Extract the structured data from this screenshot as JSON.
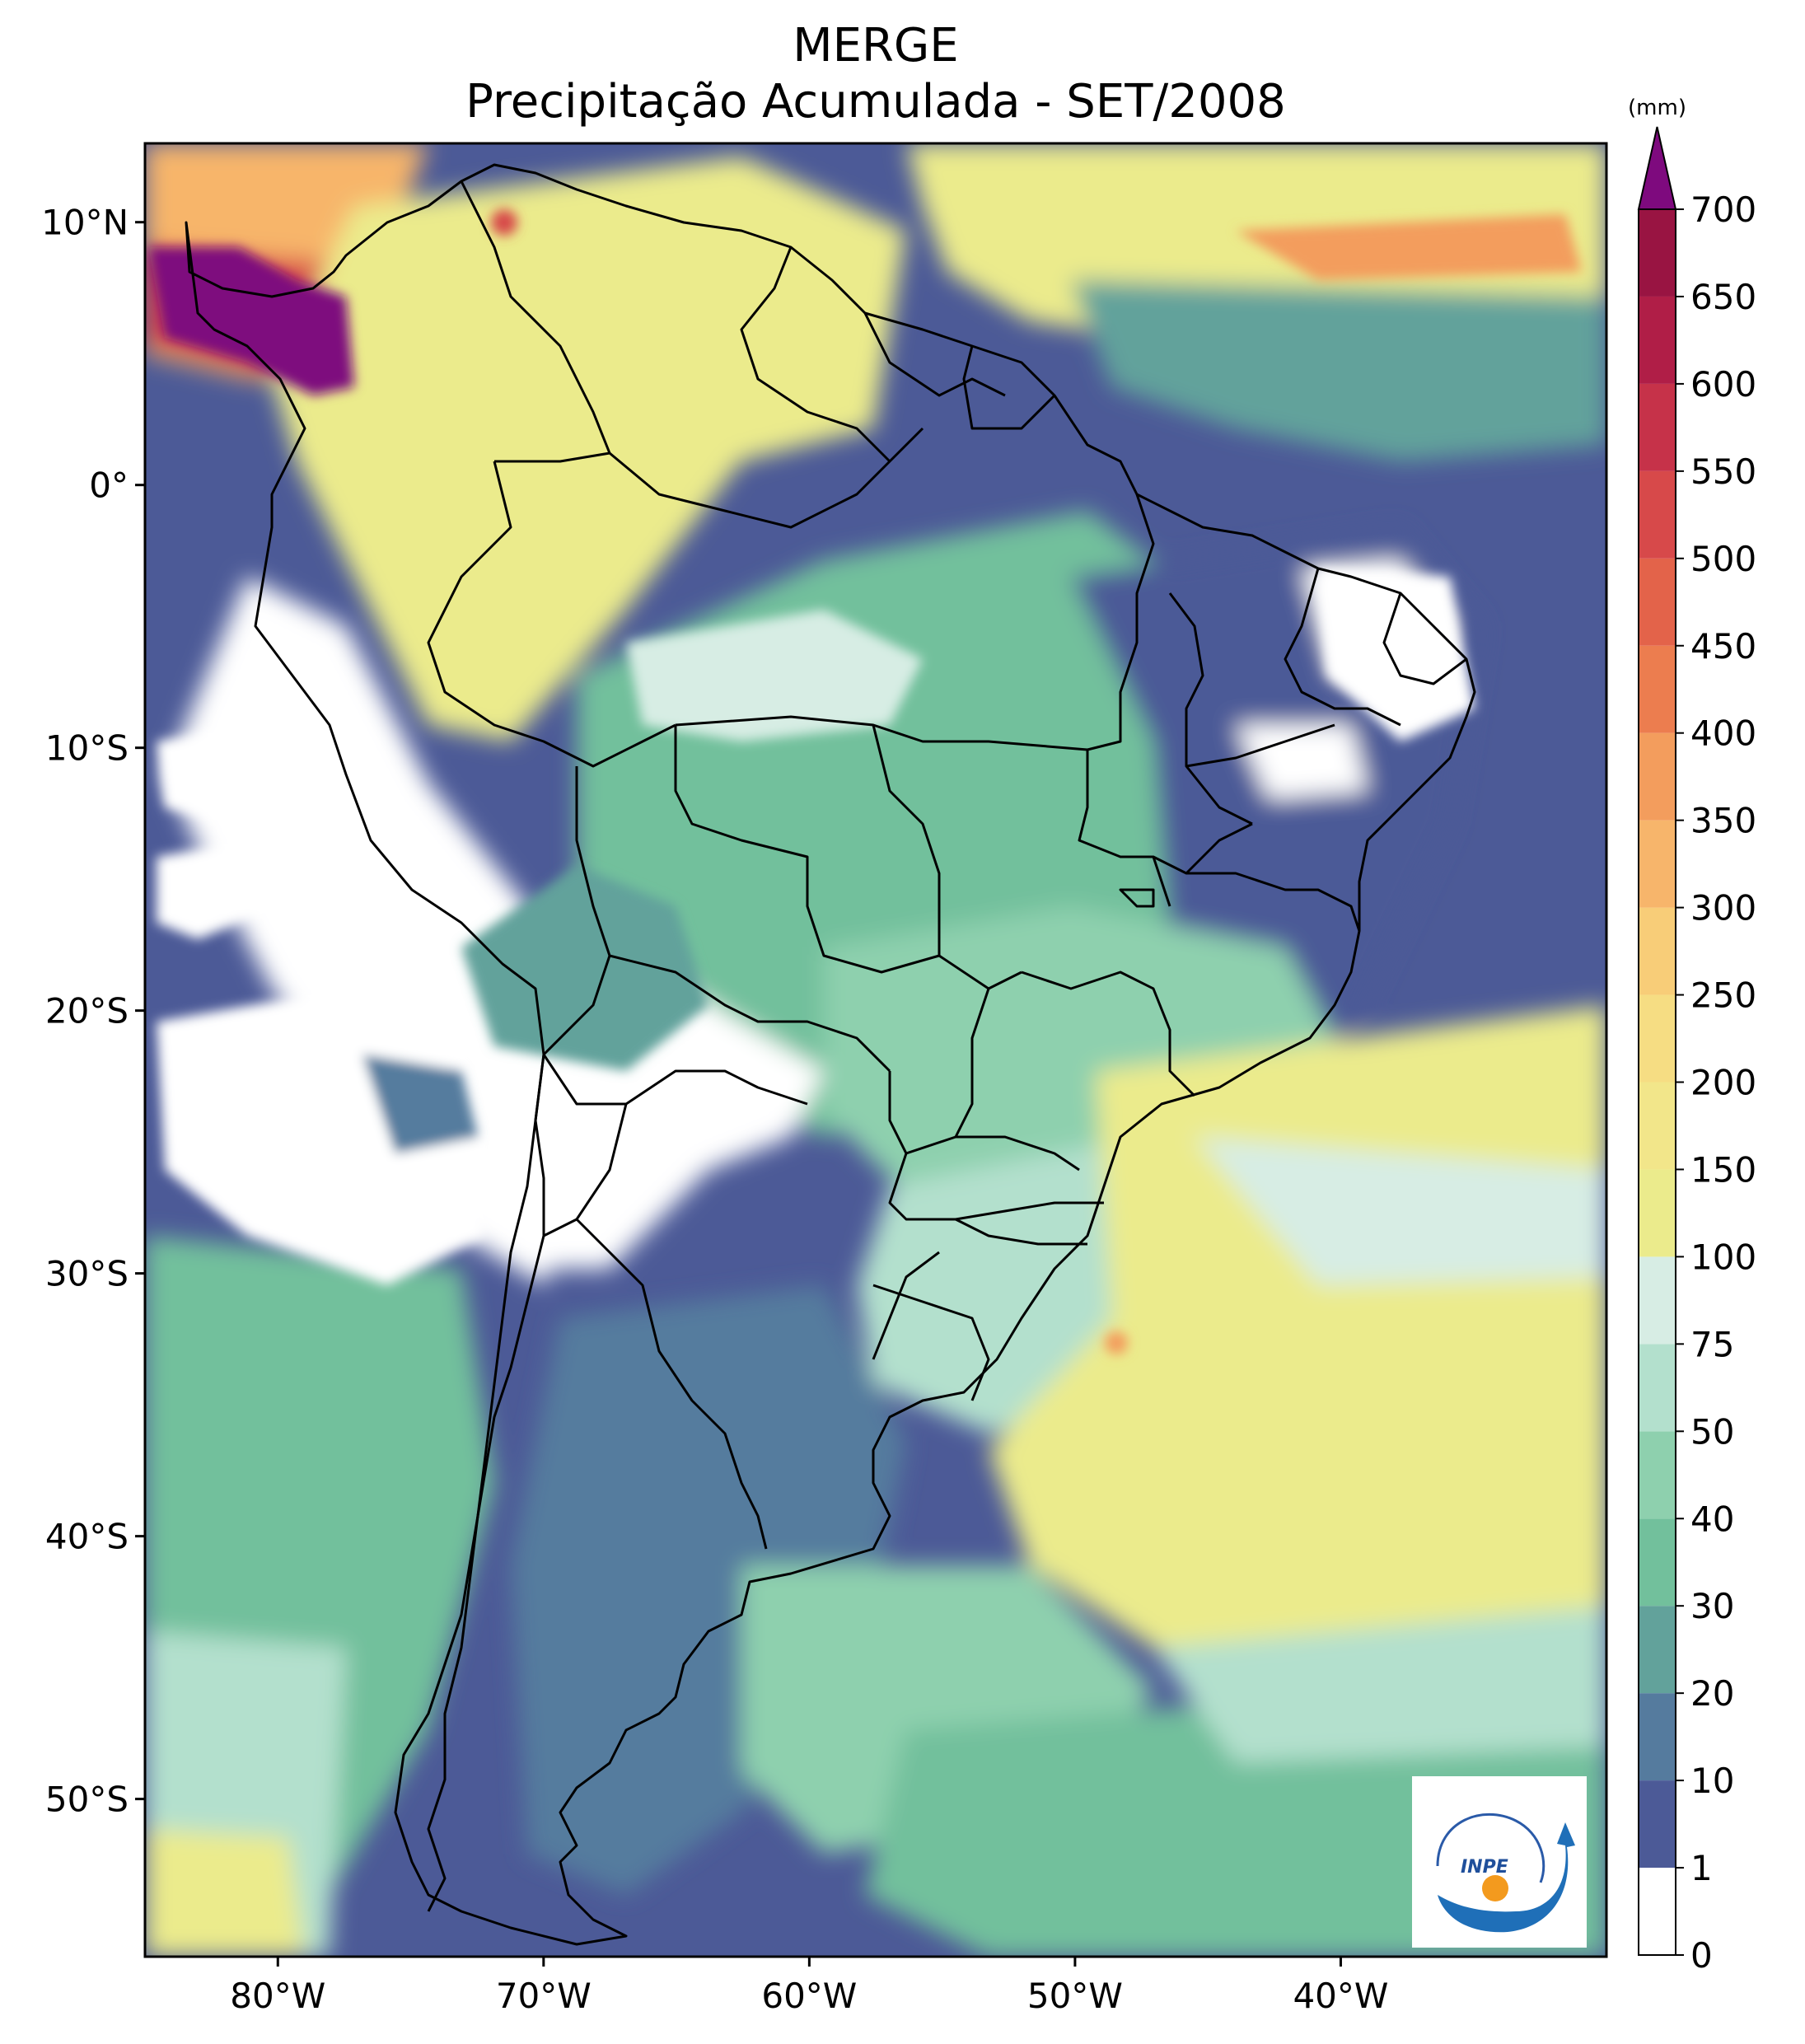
{
  "title": "MERGE",
  "subtitle": "Precipitação Acumulada - SET/2008",
  "map": {
    "region": "South America",
    "lon_range": [
      -85,
      -30
    ],
    "lat_range": [
      -56,
      13
    ],
    "lon_ticks": [
      {
        "value": -80,
        "label": "80°W"
      },
      {
        "value": -70,
        "label": "70°W"
      },
      {
        "value": -60,
        "label": "60°W"
      },
      {
        "value": -50,
        "label": "50°W"
      },
      {
        "value": -40,
        "label": "40°W"
      }
    ],
    "lat_ticks": [
      {
        "value": 10,
        "label": "10°N"
      },
      {
        "value": 0,
        "label": "0°"
      },
      {
        "value": -10,
        "label": "10°S"
      },
      {
        "value": -20,
        "label": "20°S"
      },
      {
        "value": -30,
        "label": "30°S"
      },
      {
        "value": -40,
        "label": "40°S"
      },
      {
        "value": -50,
        "label": "50°S"
      }
    ]
  },
  "colorbar": {
    "unit": "(mm)",
    "extend": "max",
    "levels": [
      {
        "label": "0",
        "color": "#ffffff"
      },
      {
        "label": "1",
        "color": "#4c5a97"
      },
      {
        "label": "10",
        "color": "#557b9e"
      },
      {
        "label": "20",
        "color": "#62a29b"
      },
      {
        "label": "30",
        "color": "#72c09c"
      },
      {
        "label": "40",
        "color": "#8ed0ae"
      },
      {
        "label": "50",
        "color": "#b3e0cd"
      },
      {
        "label": "75",
        "color": "#d7ede4"
      },
      {
        "label": "100",
        "color": "#ebeb8c"
      },
      {
        "label": "150",
        "color": "#f2e68a"
      },
      {
        "label": "200",
        "color": "#f6dd83"
      },
      {
        "label": "250",
        "color": "#f8cd78"
      },
      {
        "label": "300",
        "color": "#f7b56b"
      },
      {
        "label": "350",
        "color": "#f39d5d"
      },
      {
        "label": "400",
        "color": "#ec7d4f"
      },
      {
        "label": "450",
        "color": "#e3634a"
      },
      {
        "label": "500",
        "color": "#d7494a"
      },
      {
        "label": "550",
        "color": "#c63249"
      },
      {
        "label": "600",
        "color": "#b01e47"
      },
      {
        "label": "650",
        "color": "#991442"
      },
      {
        "label": "700",
        "color": "#7e0a7e"
      }
    ]
  },
  "logo": {
    "text": "INPE"
  }
}
